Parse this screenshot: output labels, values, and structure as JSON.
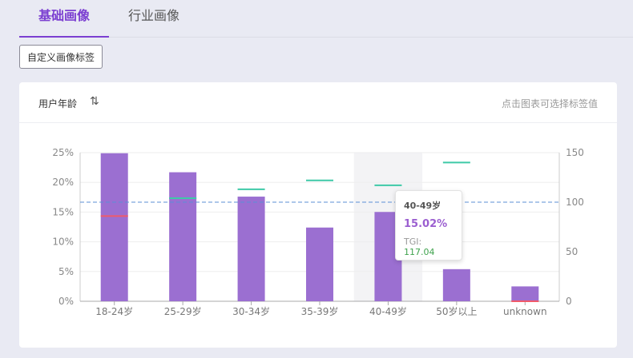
{
  "tabs": [
    {
      "label": "基础画像",
      "active": true
    },
    {
      "label": "行业画像",
      "active": false
    }
  ],
  "custom_button": "自定义画像标签",
  "card": {
    "title": "用户年龄",
    "sort_icon": "sort-icon",
    "hint": "点击图表可选择标签值"
  },
  "tooltip": {
    "title": "40-49岁",
    "value": "15.02%",
    "tgi_label": "TGI:",
    "tgi_value": "117.04"
  },
  "colors": {
    "bar": "#9b6fd1",
    "tgi_high": "#3ec9a7",
    "tgi_low": "#f05a6a",
    "avg_line": "#5b8fd6",
    "accent": "#7b3fd1"
  },
  "chart_data": {
    "type": "bar",
    "categories": [
      "18-24岁",
      "25-29岁",
      "30-34岁",
      "35-39岁",
      "40-49岁",
      "50岁以上",
      "unknown"
    ],
    "values": [
      24.9,
      21.7,
      17.6,
      12.4,
      15.02,
      5.4,
      2.5
    ],
    "tgi": [
      86,
      104,
      113,
      122,
      117.04,
      140,
      0
    ],
    "tgi_baseline": 100,
    "y_left_ticks": [
      "0%",
      "5%",
      "10%",
      "15%",
      "20%",
      "25%"
    ],
    "y_right_ticks": [
      "0",
      "50",
      "100",
      "150"
    ],
    "ylim_left": [
      0,
      25
    ],
    "ylim_right": [
      0,
      150
    ],
    "highlighted_category": "40-49岁"
  }
}
